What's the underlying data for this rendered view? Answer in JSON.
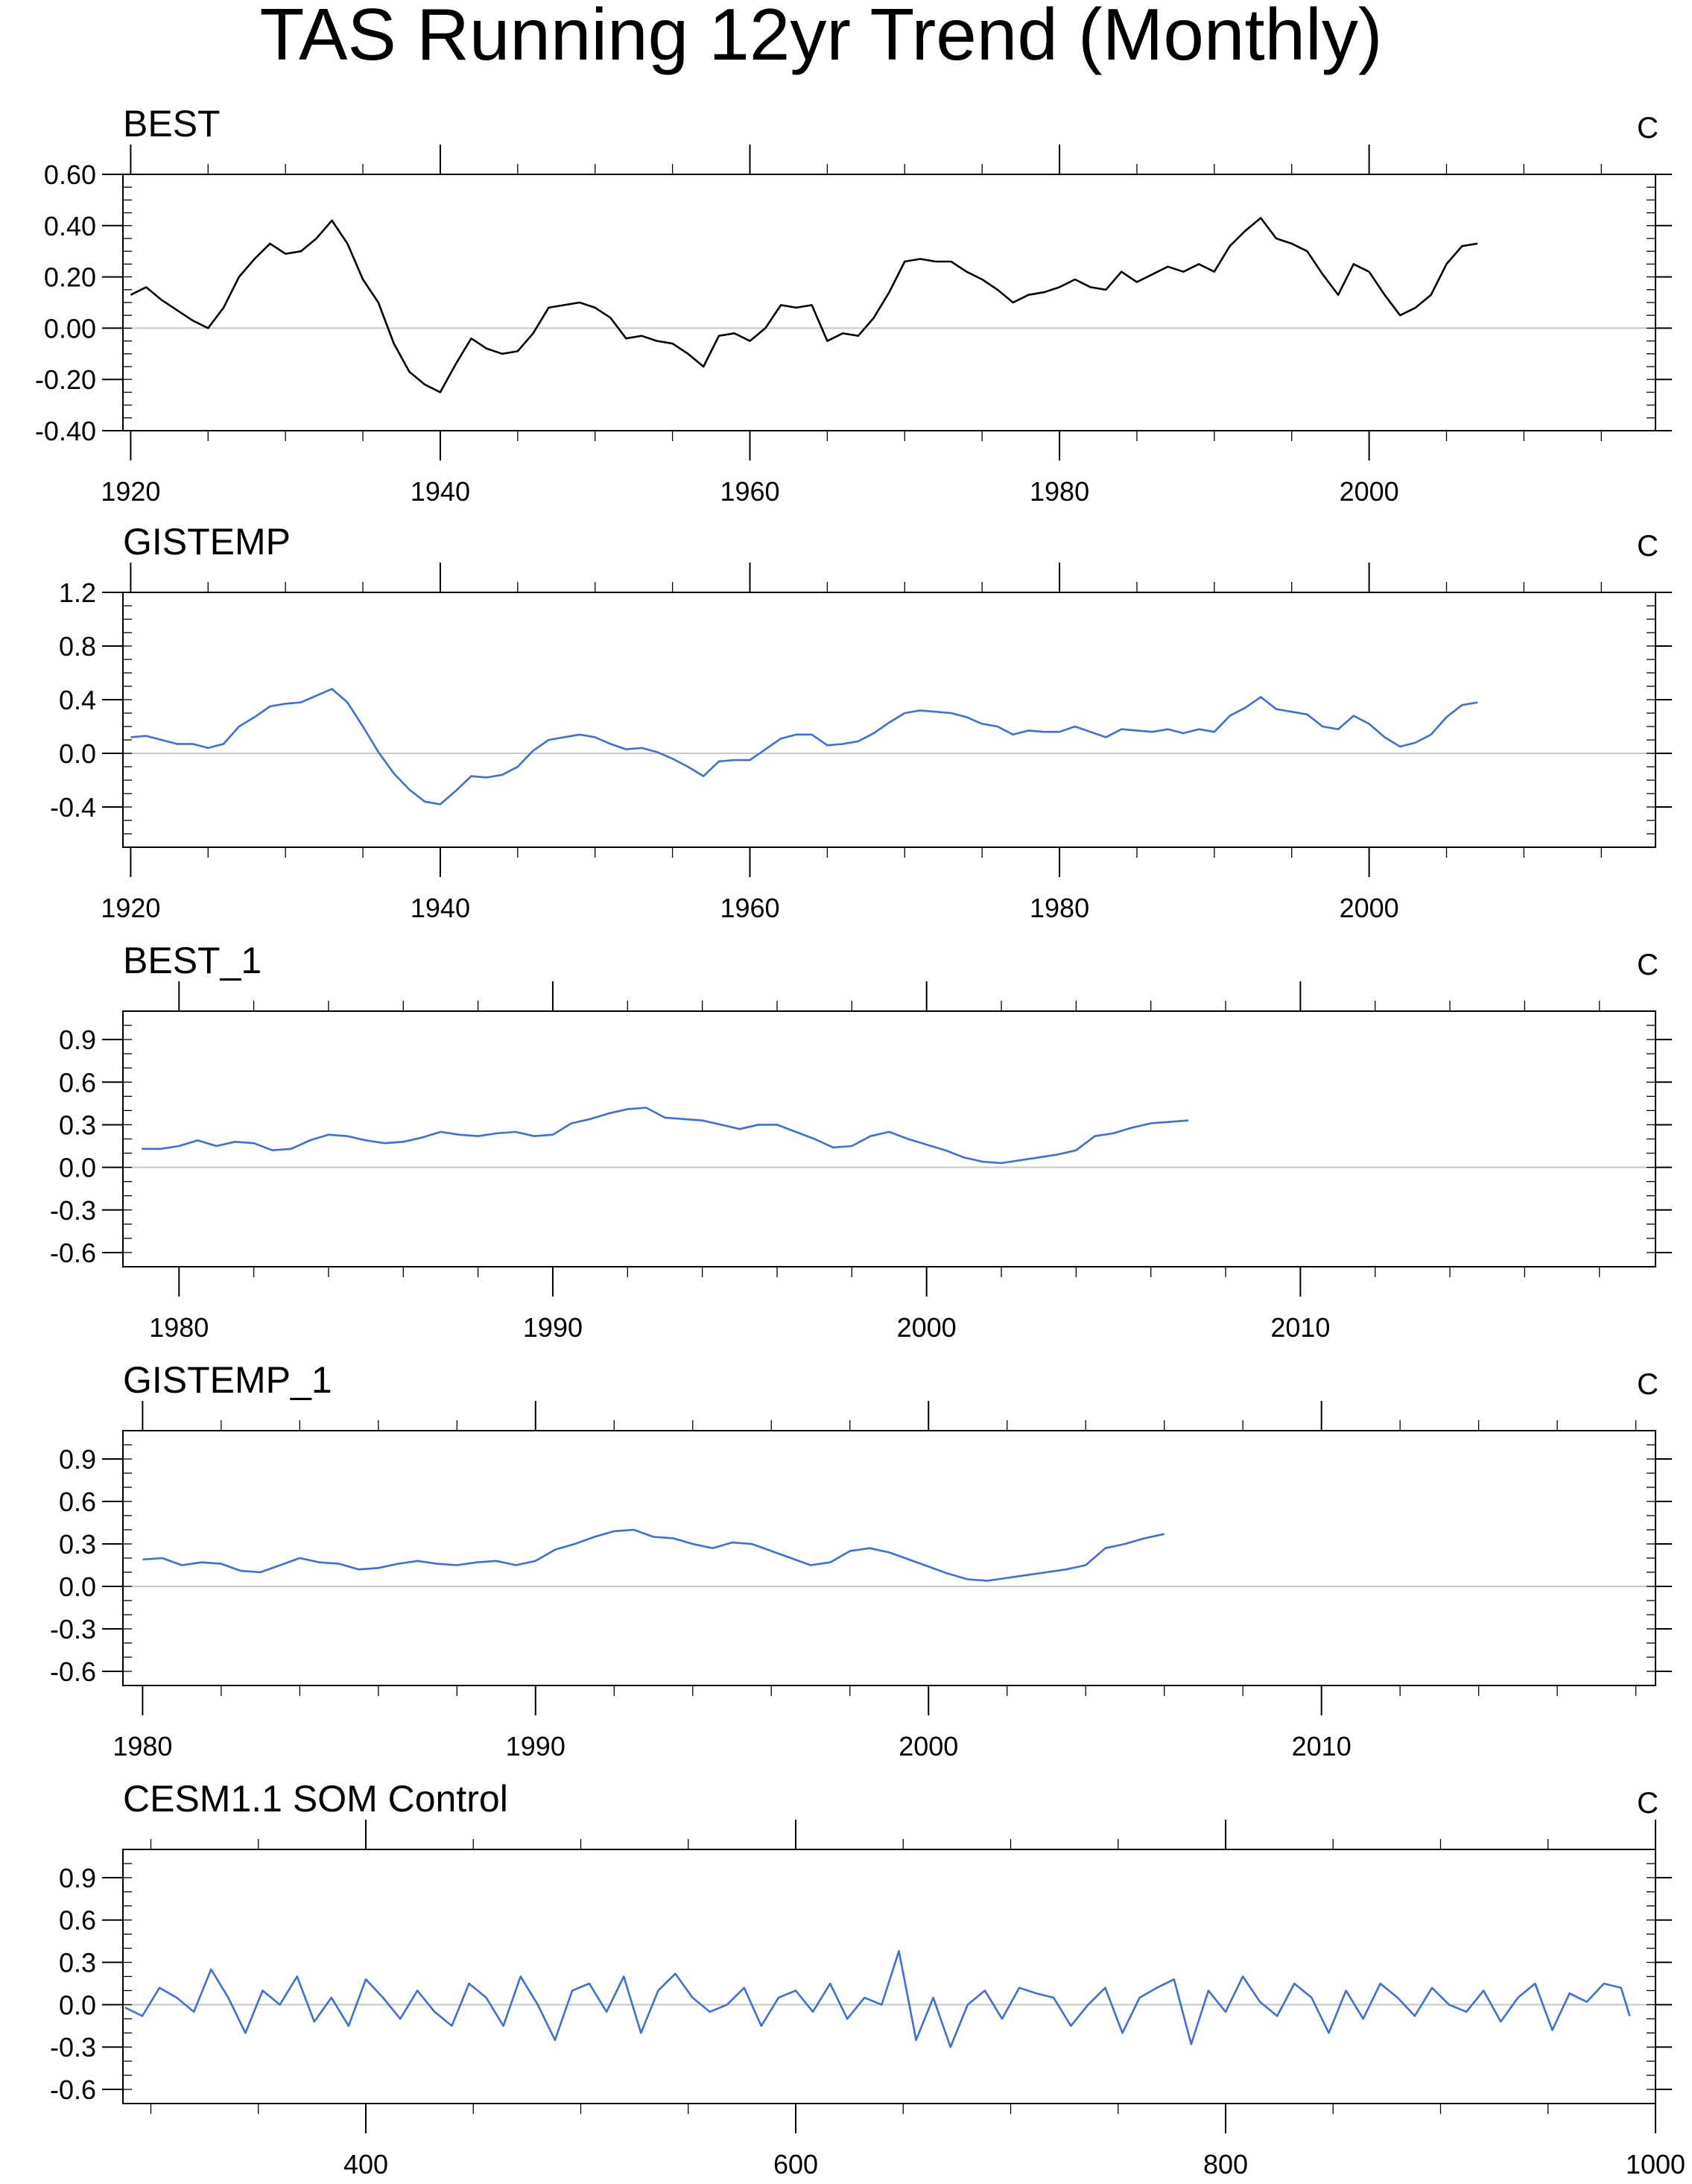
{
  "title": "TAS Running 12yr Trend (Monthly)",
  "colors": {
    "black_series": "#000000",
    "blue_series": "#3d6ee0",
    "zero_line": "#c8c8c8",
    "frame": "#000000"
  },
  "chart_data": [
    {
      "type": "line",
      "title": "BEST",
      "units": "C",
      "color": "#000000",
      "xlim": [
        1919.5,
        2018.5
      ],
      "ylim": [
        -0.4,
        0.6
      ],
      "yticks": [
        "0.60",
        "0.40",
        "0.20",
        "0.00",
        "-0.20",
        "-0.40"
      ],
      "ytick_values": [
        0.6,
        0.4,
        0.2,
        0.0,
        -0.2,
        -0.4
      ],
      "xticks": [
        "1920",
        "1940",
        "1960",
        "1980",
        "2000"
      ],
      "xtick_values": [
        1920,
        1940,
        1960,
        1980,
        2000
      ],
      "x_minor_step": 5,
      "y_minor_step": 0.05,
      "x": [
        1920,
        1921,
        1922,
        1923,
        1924,
        1925,
        1926,
        1927,
        1928,
        1929,
        1930,
        1931,
        1932,
        1933,
        1934,
        1935,
        1936,
        1937,
        1938,
        1939,
        1940,
        1941,
        1942,
        1943,
        1944,
        1945,
        1946,
        1947,
        1948,
        1949,
        1950,
        1951,
        1952,
        1953,
        1954,
        1955,
        1956,
        1957,
        1958,
        1959,
        1960,
        1961,
        1962,
        1963,
        1964,
        1965,
        1966,
        1967,
        1968,
        1969,
        1970,
        1971,
        1972,
        1973,
        1974,
        1975,
        1976,
        1977,
        1978,
        1979,
        1980,
        1981,
        1982,
        1983,
        1984,
        1985,
        1986,
        1987,
        1988,
        1989,
        1990,
        1991,
        1992,
        1993,
        1994,
        1995,
        1996,
        1997,
        1998,
        1999,
        2000,
        2001,
        2002,
        2003,
        2004,
        2005,
        2006,
        2007
      ],
      "values": [
        0.13,
        0.16,
        0.11,
        0.07,
        0.03,
        0.0,
        0.08,
        0.2,
        0.27,
        0.33,
        0.29,
        0.3,
        0.35,
        0.42,
        0.33,
        0.19,
        0.1,
        -0.06,
        -0.17,
        -0.22,
        -0.25,
        -0.14,
        -0.04,
        -0.08,
        -0.1,
        -0.09,
        -0.02,
        0.08,
        0.09,
        0.1,
        0.08,
        0.04,
        -0.04,
        -0.03,
        -0.05,
        -0.06,
        -0.1,
        -0.15,
        -0.03,
        -0.02,
        -0.05,
        0.0,
        0.09,
        0.08,
        0.09,
        -0.05,
        -0.02,
        -0.03,
        0.04,
        0.14,
        0.26,
        0.27,
        0.26,
        0.26,
        0.22,
        0.19,
        0.15,
        0.1,
        0.13,
        0.14,
        0.16,
        0.19,
        0.16,
        0.15,
        0.22,
        0.18,
        0.21,
        0.24,
        0.22,
        0.25,
        0.22,
        0.32,
        0.38,
        0.43,
        0.35,
        0.33,
        0.3,
        0.21,
        0.13,
        0.25,
        0.22,
        0.13,
        0.05,
        0.08,
        0.13,
        0.25,
        0.32,
        0.33
      ]
    },
    {
      "type": "line",
      "title": "GISTEMP",
      "units": "C",
      "color": "#3d6ee0",
      "xlim": [
        1919.5,
        2018.5
      ],
      "ylim": [
        -0.7,
        1.2
      ],
      "yticks": [
        "1.2",
        "0.8",
        "0.4",
        "0.0",
        "-0.4"
      ],
      "ytick_values": [
        1.2,
        0.8,
        0.4,
        0.0,
        -0.4
      ],
      "xticks": [
        "1920",
        "1940",
        "1960",
        "1980",
        "2000"
      ],
      "xtick_values": [
        1920,
        1940,
        1960,
        1980,
        2000
      ],
      "x_minor_step": 5,
      "y_minor_step": 0.1,
      "x": [
        1920,
        1921,
        1922,
        1923,
        1924,
        1925,
        1926,
        1927,
        1928,
        1929,
        1930,
        1931,
        1932,
        1933,
        1934,
        1935,
        1936,
        1937,
        1938,
        1939,
        1940,
        1941,
        1942,
        1943,
        1944,
        1945,
        1946,
        1947,
        1948,
        1949,
        1950,
        1951,
        1952,
        1953,
        1954,
        1955,
        1956,
        1957,
        1958,
        1959,
        1960,
        1961,
        1962,
        1963,
        1964,
        1965,
        1966,
        1967,
        1968,
        1969,
        1970,
        1971,
        1972,
        1973,
        1974,
        1975,
        1976,
        1977,
        1978,
        1979,
        1980,
        1981,
        1982,
        1983,
        1984,
        1985,
        1986,
        1987,
        1988,
        1989,
        1990,
        1991,
        1992,
        1993,
        1994,
        1995,
        1996,
        1997,
        1998,
        1999,
        2000,
        2001,
        2002,
        2003,
        2004,
        2005,
        2006,
        2007
      ],
      "values": [
        0.12,
        0.13,
        0.1,
        0.07,
        0.07,
        0.04,
        0.07,
        0.2,
        0.27,
        0.35,
        0.37,
        0.38,
        0.43,
        0.48,
        0.38,
        0.2,
        0.01,
        -0.15,
        -0.27,
        -0.36,
        -0.38,
        -0.28,
        -0.17,
        -0.18,
        -0.16,
        -0.1,
        0.02,
        0.1,
        0.12,
        0.14,
        0.12,
        0.07,
        0.03,
        0.04,
        0.01,
        -0.04,
        -0.1,
        -0.17,
        -0.06,
        -0.05,
        -0.05,
        0.03,
        0.11,
        0.14,
        0.14,
        0.06,
        0.07,
        0.09,
        0.15,
        0.23,
        0.3,
        0.32,
        0.31,
        0.3,
        0.27,
        0.22,
        0.2,
        0.14,
        0.17,
        0.16,
        0.16,
        0.2,
        0.16,
        0.12,
        0.18,
        0.17,
        0.16,
        0.18,
        0.15,
        0.18,
        0.16,
        0.28,
        0.34,
        0.42,
        0.33,
        0.31,
        0.29,
        0.2,
        0.18,
        0.28,
        0.22,
        0.12,
        0.05,
        0.08,
        0.14,
        0.27,
        0.36,
        0.38
      ]
    },
    {
      "type": "line",
      "title": "BEST_1",
      "units": "C",
      "color": "#3d6ee0",
      "xlim": [
        1978.5,
        2019.5
      ],
      "ylim": [
        -0.7,
        1.1
      ],
      "yticks": [
        "0.9",
        "0.6",
        "0.3",
        "0.0",
        "-0.3",
        "-0.6"
      ],
      "ytick_values": [
        0.9,
        0.6,
        0.3,
        0.0,
        -0.3,
        -0.6
      ],
      "xticks": [
        "1980",
        "1990",
        "2000",
        "2010"
      ],
      "xtick_values": [
        1980,
        1990,
        2000,
        2010
      ],
      "x_minor_step": 2,
      "y_minor_step": 0.1,
      "x": [
        1979,
        1979.5,
        1980,
        1980.5,
        1981,
        1981.5,
        1982,
        1982.5,
        1983,
        1983.5,
        1984,
        1984.5,
        1985,
        1985.5,
        1986,
        1986.5,
        1987,
        1987.5,
        1988,
        1988.5,
        1989,
        1989.5,
        1990,
        1990.5,
        1991,
        1991.5,
        1992,
        1992.5,
        1993,
        1993.5,
        1994,
        1994.5,
        1995,
        1995.5,
        1996,
        1996.5,
        1997,
        1997.5,
        1998,
        1998.5,
        1999,
        1999.5,
        2000,
        2000.5,
        2001,
        2001.5,
        2002,
        2002.5,
        2003,
        2003.5,
        2004,
        2004.5,
        2005,
        2005.5,
        2006,
        2006.5,
        2007
      ],
      "values": [
        0.13,
        0.13,
        0.15,
        0.19,
        0.15,
        0.18,
        0.17,
        0.12,
        0.13,
        0.19,
        0.23,
        0.22,
        0.19,
        0.17,
        0.18,
        0.21,
        0.25,
        0.23,
        0.22,
        0.24,
        0.25,
        0.22,
        0.23,
        0.31,
        0.34,
        0.38,
        0.41,
        0.42,
        0.35,
        0.34,
        0.33,
        0.3,
        0.27,
        0.3,
        0.3,
        0.25,
        0.2,
        0.14,
        0.15,
        0.22,
        0.25,
        0.2,
        0.16,
        0.12,
        0.07,
        0.04,
        0.03,
        0.05,
        0.07,
        0.09,
        0.12,
        0.22,
        0.24,
        0.28,
        0.31,
        0.32,
        0.33
      ]
    },
    {
      "type": "line",
      "title": "GISTEMP_1",
      "units": "C",
      "color": "#3d6ee0",
      "xlim": [
        1979.5,
        2018.5
      ],
      "ylim": [
        -0.7,
        1.1
      ],
      "yticks": [
        "0.9",
        "0.6",
        "0.3",
        "0.0",
        "-0.3",
        "-0.6"
      ],
      "ytick_values": [
        0.9,
        0.6,
        0.3,
        0.0,
        -0.3,
        -0.6
      ],
      "xticks": [
        "1980",
        "1990",
        "2000",
        "2010"
      ],
      "xtick_values": [
        1980,
        1990,
        2000,
        2010
      ],
      "x_minor_step": 2,
      "y_minor_step": 0.1,
      "x": [
        1980,
        1980.5,
        1981,
        1981.5,
        1982,
        1982.5,
        1983,
        1983.5,
        1984,
        1984.5,
        1985,
        1985.5,
        1986,
        1986.5,
        1987,
        1987.5,
        1988,
        1988.5,
        1989,
        1989.5,
        1990,
        1990.5,
        1991,
        1991.5,
        1992,
        1992.5,
        1993,
        1993.5,
        1994,
        1994.5,
        1995,
        1995.5,
        1996,
        1996.5,
        1997,
        1997.5,
        1998,
        1998.5,
        1999,
        1999.5,
        2000,
        2000.5,
        2001,
        2001.5,
        2002,
        2002.5,
        2003,
        2003.5,
        2004,
        2004.5,
        2005,
        2005.5,
        2006
      ],
      "values": [
        0.19,
        0.2,
        0.15,
        0.17,
        0.16,
        0.11,
        0.1,
        0.15,
        0.2,
        0.17,
        0.16,
        0.12,
        0.13,
        0.16,
        0.18,
        0.16,
        0.15,
        0.17,
        0.18,
        0.15,
        0.18,
        0.26,
        0.3,
        0.35,
        0.39,
        0.4,
        0.35,
        0.34,
        0.3,
        0.27,
        0.31,
        0.3,
        0.25,
        0.2,
        0.15,
        0.17,
        0.25,
        0.27,
        0.24,
        0.19,
        0.14,
        0.09,
        0.05,
        0.04,
        0.06,
        0.08,
        0.1,
        0.12,
        0.15,
        0.27,
        0.3,
        0.34,
        0.37
      ]
    },
    {
      "type": "line",
      "title": "CESM1.1 SOM Control",
      "units": "C",
      "color": "#3d6ee0",
      "xlim": [
        287,
        1000
      ],
      "ylim": [
        -0.7,
        1.1
      ],
      "yticks": [
        "0.9",
        "0.6",
        "0.3",
        "0.0",
        "-0.3",
        "-0.6"
      ],
      "ytick_values": [
        0.9,
        0.6,
        0.3,
        0.0,
        -0.3,
        -0.6
      ],
      "xticks": [
        "400",
        "600",
        "800",
        "1000"
      ],
      "xtick_values": [
        400,
        600,
        800,
        1000
      ],
      "x_minor_step": 50,
      "y_minor_step": 0.1,
      "x": [
        288,
        296,
        304,
        312,
        320,
        328,
        336,
        344,
        352,
        360,
        368,
        376,
        384,
        392,
        400,
        408,
        416,
        424,
        432,
        440,
        448,
        456,
        464,
        472,
        480,
        488,
        496,
        504,
        512,
        520,
        528,
        536,
        544,
        552,
        560,
        568,
        576,
        584,
        592,
        600,
        608,
        616,
        624,
        632,
        640,
        648,
        656,
        664,
        672,
        680,
        688,
        696,
        704,
        712,
        720,
        728,
        736,
        744,
        752,
        760,
        768,
        776,
        784,
        792,
        800,
        808,
        816,
        824,
        832,
        840,
        848,
        856,
        864,
        872,
        880,
        888,
        896,
        904,
        912,
        920,
        928,
        936,
        944,
        952,
        960,
        968,
        976,
        984,
        988
      ],
      "values": [
        -0.02,
        -0.08,
        0.12,
        0.05,
        -0.05,
        0.25,
        0.05,
        -0.2,
        0.1,
        0.0,
        0.2,
        -0.12,
        0.05,
        -0.15,
        0.18,
        0.05,
        -0.1,
        0.1,
        -0.05,
        -0.15,
        0.15,
        0.05,
        -0.15,
        0.2,
        0.0,
        -0.25,
        0.1,
        0.15,
        -0.05,
        0.2,
        -0.2,
        0.1,
        0.22,
        0.05,
        -0.05,
        0.0,
        0.12,
        -0.15,
        0.05,
        0.1,
        -0.05,
        0.15,
        -0.1,
        0.05,
        0.0,
        0.38,
        -0.25,
        0.05,
        -0.3,
        0.0,
        0.1,
        -0.1,
        0.12,
        0.08,
        0.05,
        -0.15,
        0.0,
        0.12,
        -0.2,
        0.05,
        0.12,
        0.18,
        -0.28,
        0.1,
        -0.05,
        0.2,
        0.02,
        -0.08,
        0.15,
        0.05,
        -0.2,
        0.1,
        -0.1,
        0.15,
        0.05,
        -0.08,
        0.12,
        0.0,
        -0.05,
        0.1,
        -0.12,
        0.05,
        0.15,
        -0.18,
        0.08,
        0.02,
        0.15,
        0.12,
        -0.08
      ]
    }
  ]
}
